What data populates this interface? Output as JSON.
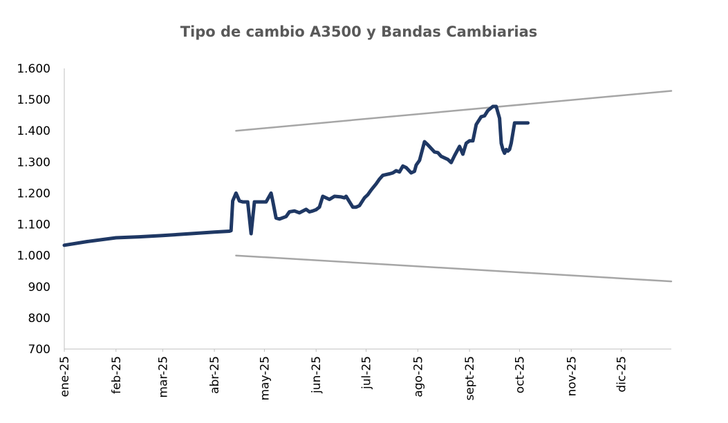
{
  "chart_data": {
    "type": "line",
    "title": "Tipo de cambio A3500 y Bandas Cambiarias",
    "xlabel": "",
    "ylabel": "",
    "ylim": [
      700,
      1600
    ],
    "xlim": [
      "2025-01-01",
      "2025-12-31"
    ],
    "grid": false,
    "legend": "none",
    "y_ticks": [
      {
        "value": 700,
        "label": "700"
      },
      {
        "value": 800,
        "label": "800"
      },
      {
        "value": 900,
        "label": "900"
      },
      {
        "value": 1000,
        "label": "1.000"
      },
      {
        "value": 1100,
        "label": "1.100"
      },
      {
        "value": 1200,
        "label": "1.200"
      },
      {
        "value": 1300,
        "label": "1.300"
      },
      {
        "value": 1400,
        "label": "1.400"
      },
      {
        "value": 1500,
        "label": "1.500"
      },
      {
        "value": 1600,
        "label": "1.600"
      }
    ],
    "x_ticks": [
      {
        "date": "2025-01-01",
        "label": "ene-25"
      },
      {
        "date": "2025-02-01",
        "label": "feb-25"
      },
      {
        "date": "2025-03-01",
        "label": "mar-25"
      },
      {
        "date": "2025-04-01",
        "label": "abr-25"
      },
      {
        "date": "2025-05-01",
        "label": "may-25"
      },
      {
        "date": "2025-06-01",
        "label": "jun-25"
      },
      {
        "date": "2025-07-01",
        "label": "jul-25"
      },
      {
        "date": "2025-08-01",
        "label": "ago-25"
      },
      {
        "date": "2025-09-01",
        "label": "sept-25"
      },
      {
        "date": "2025-10-01",
        "label": "oct-25"
      },
      {
        "date": "2025-11-01",
        "label": "nov-25"
      },
      {
        "date": "2025-12-01",
        "label": "dic-25"
      }
    ],
    "series": [
      {
        "color": "#1f3864",
        "x": [
          "2025-01-01",
          "2025-01-15",
          "2025-02-01",
          "2025-02-15",
          "2025-03-01",
          "2025-03-15",
          "2025-04-01",
          "2025-04-10",
          "2025-04-11",
          "2025-04-12",
          "2025-04-14",
          "2025-04-16",
          "2025-04-18",
          "2025-04-21",
          "2025-04-23",
          "2025-04-25",
          "2025-04-29",
          "2025-05-02",
          "2025-05-05",
          "2025-05-06",
          "2025-05-08",
          "2025-05-10",
          "2025-05-14",
          "2025-05-16",
          "2025-05-19",
          "2025-05-22",
          "2025-05-26",
          "2025-05-28",
          "2025-05-30",
          "2025-06-01",
          "2025-06-03",
          "2025-06-05",
          "2025-06-09",
          "2025-06-12",
          "2025-06-16",
          "2025-06-18",
          "2025-06-19",
          "2025-06-23",
          "2025-06-25",
          "2025-06-27",
          "2025-06-30",
          "2025-07-02",
          "2025-07-04",
          "2025-07-07",
          "2025-07-09",
          "2025-07-11",
          "2025-07-15",
          "2025-07-17",
          "2025-07-19",
          "2025-07-21",
          "2025-07-23",
          "2025-07-25",
          "2025-07-28",
          "2025-07-30",
          "2025-07-31",
          "2025-08-02",
          "2025-08-05",
          "2025-08-07",
          "2025-08-11",
          "2025-08-13",
          "2025-08-15",
          "2025-08-19",
          "2025-08-21",
          "2025-08-23",
          "2025-08-26",
          "2025-08-28",
          "2025-08-30",
          "2025-09-01",
          "2025-09-03",
          "2025-09-05",
          "2025-09-08",
          "2025-09-10",
          "2025-09-12",
          "2025-09-15",
          "2025-09-17",
          "2025-09-19",
          "2025-09-20",
          "2025-09-21",
          "2025-09-22",
          "2025-09-23",
          "2025-09-24",
          "2025-09-25",
          "2025-09-26",
          "2025-09-28",
          "2025-09-30",
          "2025-10-01",
          "2025-10-02",
          "2025-10-03",
          "2025-10-06"
        ],
        "values": [
          1033,
          1045,
          1057,
          1060,
          1064,
          1069,
          1075,
          1078,
          1080,
          1175,
          1200,
          1175,
          1172,
          1172,
          1070,
          1172,
          1172,
          1172,
          1200,
          1175,
          1120,
          1117,
          1125,
          1140,
          1143,
          1137,
          1148,
          1140,
          1143,
          1147,
          1155,
          1190,
          1180,
          1190,
          1188,
          1185,
          1190,
          1155,
          1155,
          1160,
          1185,
          1195,
          1210,
          1230,
          1245,
          1257,
          1262,
          1265,
          1272,
          1268,
          1287,
          1282,
          1265,
          1270,
          1290,
          1305,
          1365,
          1355,
          1332,
          1330,
          1318,
          1308,
          1298,
          1320,
          1350,
          1325,
          1360,
          1368,
          1368,
          1420,
          1445,
          1448,
          1465,
          1478,
          1478,
          1440,
          1360,
          1340,
          1328,
          1340,
          1335,
          1340,
          1360,
          1425,
          1425,
          1425,
          1425,
          1425,
          1425
        ]
      },
      {
        "color": "#a6a6a6",
        "x": [
          "2025-04-14",
          "2025-12-31"
        ],
        "values": [
          1400,
          1528
        ]
      },
      {
        "color": "#a6a6a6",
        "x": [
          "2025-04-14",
          "2025-12-31"
        ],
        "values": [
          1000,
          917
        ]
      }
    ]
  }
}
